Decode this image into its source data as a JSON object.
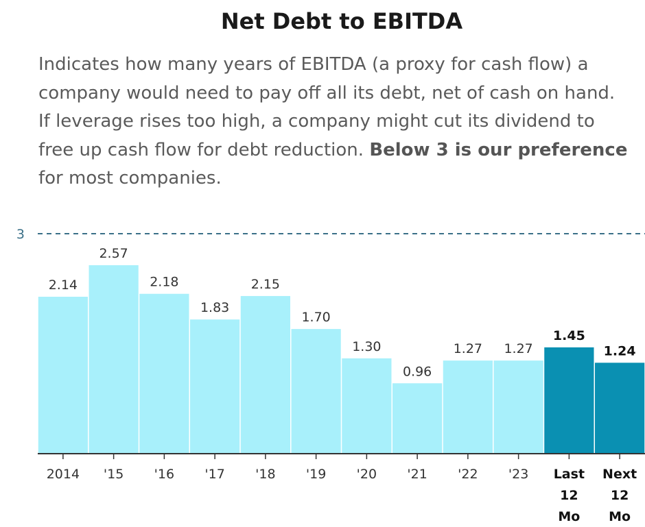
{
  "chart_data": {
    "type": "bar",
    "title": "Net Debt to EBITDA",
    "description": {
      "before": "Indicates how many years of EBITDA (a proxy for cash flow) a company would need to pay off all its debt, net of cash on hand. If leverage rises too high, a company might cut its dividend to free up cash flow for debt reduction. ",
      "bold": "Below 3 is our preference",
      "after": " for most companies."
    },
    "categories": [
      "2014",
      "'15",
      "'16",
      "'17",
      "'18",
      "'19",
      "'20",
      "'21",
      "'22",
      "'23",
      "Last 12 Mo",
      "Next 12 Mo"
    ],
    "values": [
      2.14,
      2.57,
      2.18,
      1.83,
      2.15,
      1.7,
      1.3,
      0.96,
      1.27,
      1.27,
      1.45,
      1.24
    ],
    "value_labels": [
      "2.14",
      "2.57",
      "2.18",
      "1.83",
      "2.15",
      "1.70",
      "1.30",
      "0.96",
      "1.27",
      "1.27",
      "1.45",
      "1.24"
    ],
    "highlighted": [
      false,
      false,
      false,
      false,
      false,
      false,
      false,
      false,
      false,
      false,
      true,
      true
    ],
    "reference_line": {
      "value": 3,
      "label": "3",
      "style": "dashed"
    },
    "ylim": [
      0,
      3
    ],
    "xlabel": "",
    "ylabel": "",
    "grid": false,
    "colors": {
      "bar": "#a8f0fb",
      "bar_highlight": "#0a90b2",
      "reference_line": "#3a6f87",
      "axis": "#333333"
    }
  }
}
